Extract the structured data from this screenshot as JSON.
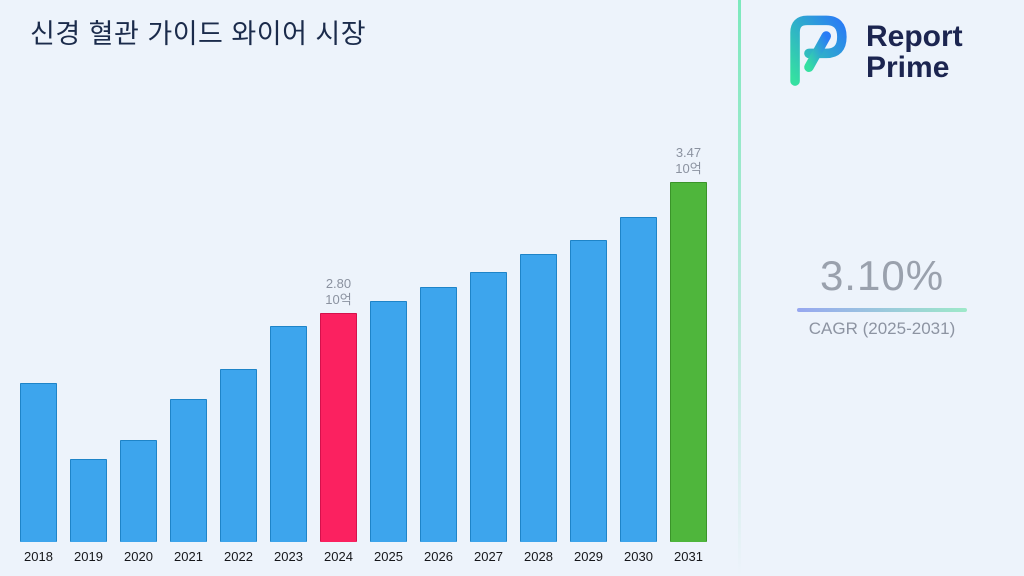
{
  "page": {
    "background": "#edf3fb"
  },
  "title": "신경 혈관 가이드 와이어 시장",
  "logo": {
    "name": "Report Prime",
    "line1": "Report",
    "line2": "Prime"
  },
  "cagr": {
    "value": "3.10%",
    "label": "CAGR (2025-2031)"
  },
  "chart_data": {
    "type": "bar",
    "title": "신경 혈관 가이드 와이어 시장",
    "categories": [
      "2018",
      "2019",
      "2020",
      "2021",
      "2022",
      "2023",
      "2024",
      "2025",
      "2026",
      "2027",
      "2028",
      "2029",
      "2030",
      "2031"
    ],
    "values": [
      2.44,
      2.05,
      2.15,
      2.36,
      2.51,
      2.73,
      2.8,
      2.86,
      2.93,
      3.01,
      3.1,
      3.17,
      3.29,
      3.47
    ],
    "unit": "10억",
    "value_axis": "hidden",
    "grid": false,
    "legend": false,
    "bar_colors": {
      "default": {
        "fill": "#3da5ed",
        "edge": "#1e84c8"
      },
      "2024": {
        "fill": "#fb2160",
        "edge": "#d4114c"
      },
      "2031": {
        "fill": "#4fb63c",
        "edge": "#3a9429"
      }
    },
    "annotations": [
      {
        "category": "2024",
        "lines": [
          "2.80",
          "10억"
        ]
      },
      {
        "category": "2031",
        "lines": [
          "3.47",
          "10억"
        ]
      }
    ]
  }
}
